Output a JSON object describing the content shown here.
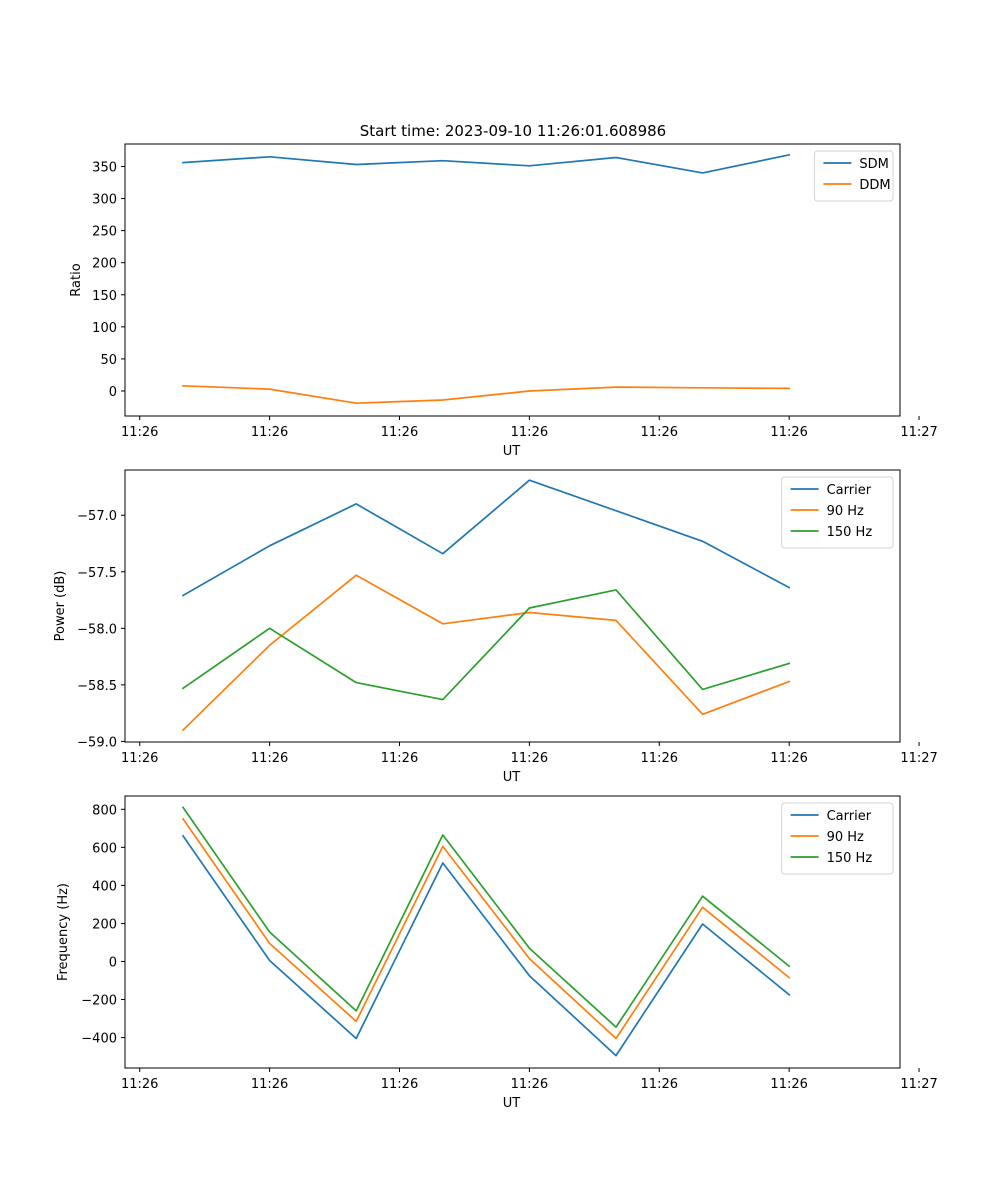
{
  "colors": {
    "c0": "#1f77b4",
    "c1": "#ff7f0e",
    "c2": "#2ca02c"
  },
  "chart_data": [
    {
      "type": "line",
      "title": "Start time: 2023-09-10 11:26:01.608986",
      "xlabel": "UT",
      "ylabel": "Ratio",
      "x": [
        1,
        2,
        3,
        4,
        5,
        6,
        7,
        8
      ],
      "xlim": [
        0.33,
        9.28
      ],
      "xticks": [
        0.5,
        2,
        3.5,
        5,
        6.5,
        8,
        9.5
      ],
      "xtick_labels": [
        "11:26",
        "11:26",
        "11:26",
        "11:26",
        "11:26",
        "11:26",
        "11:27"
      ],
      "ylim": [
        -39,
        385
      ],
      "yticks": [
        0,
        50,
        100,
        150,
        200,
        250,
        300,
        350
      ],
      "ytick_labels": [
        "0",
        "50",
        "100",
        "150",
        "200",
        "250",
        "300",
        "350"
      ],
      "legend_position": "top-right",
      "series": [
        {
          "name": "SDM",
          "color": "#1f77b4",
          "values": [
            356,
            365,
            353,
            359,
            351,
            364,
            340,
            368
          ]
        },
        {
          "name": "DDM",
          "color": "#ff7f0e",
          "values": [
            8,
            3,
            -19,
            -14,
            0,
            6,
            5,
            4
          ]
        }
      ]
    },
    {
      "type": "line",
      "title": "",
      "xlabel": "UT",
      "ylabel": "Power (dB)",
      "x": [
        1,
        2,
        3,
        4,
        5,
        6,
        7,
        8
      ],
      "xlim": [
        0.33,
        9.28
      ],
      "xticks": [
        0.5,
        2,
        3.5,
        5,
        6.5,
        8,
        9.5
      ],
      "xtick_labels": [
        "11:26",
        "11:26",
        "11:26",
        "11:26",
        "11:26",
        "11:26",
        "11:27"
      ],
      "ylim": [
        -59.005,
        -56.6
      ],
      "yticks": [
        -59.0,
        -58.5,
        -58.0,
        -57.5,
        -57.0
      ],
      "ytick_labels": [
        "−59.0",
        "−58.5",
        "−58.0",
        "−57.5",
        "−57.0"
      ],
      "legend_position": "top-right",
      "series": [
        {
          "name": "Carrier",
          "color": "#1f77b4",
          "values": [
            -57.71,
            -57.27,
            -56.9,
            -57.34,
            -56.69,
            -56.96,
            -57.23,
            -57.64
          ]
        },
        {
          "name": "90 Hz",
          "color": "#ff7f0e",
          "values": [
            -58.9,
            -58.15,
            -57.53,
            -57.96,
            -57.86,
            -57.93,
            -58.76,
            -58.47
          ]
        },
        {
          "name": "150 Hz",
          "color": "#2ca02c",
          "values": [
            -58.53,
            -58.0,
            -58.48,
            -58.63,
            -57.82,
            -57.66,
            -58.54,
            -58.31
          ]
        }
      ]
    },
    {
      "type": "line",
      "title": "",
      "xlabel": "UT",
      "ylabel": "Frequency (Hz)",
      "x": [
        1,
        2,
        3,
        4,
        5,
        6,
        7,
        8
      ],
      "xlim": [
        0.33,
        9.28
      ],
      "xticks": [
        0.5,
        2,
        3.5,
        5,
        6.5,
        8,
        9.5
      ],
      "xtick_labels": [
        "11:26",
        "11:26",
        "11:26",
        "11:26",
        "11:26",
        "11:26",
        "11:27"
      ],
      "ylim": [
        -560,
        870
      ],
      "yticks": [
        -400,
        -200,
        0,
        200,
        400,
        600,
        800
      ],
      "ytick_labels": [
        "−400",
        "−200",
        "0",
        "200",
        "400",
        "600",
        "800"
      ],
      "legend_position": "top-right",
      "series": [
        {
          "name": "Carrier",
          "color": "#1f77b4",
          "values": [
            660,
            5,
            -405,
            518,
            -75,
            -495,
            197,
            -175
          ]
        },
        {
          "name": "90 Hz",
          "color": "#ff7f0e",
          "values": [
            750,
            95,
            -315,
            605,
            15,
            -405,
            285,
            -85
          ]
        },
        {
          "name": "150 Hz",
          "color": "#2ca02c",
          "values": [
            810,
            155,
            -260,
            665,
            70,
            -345,
            343,
            -25
          ]
        }
      ]
    }
  ]
}
